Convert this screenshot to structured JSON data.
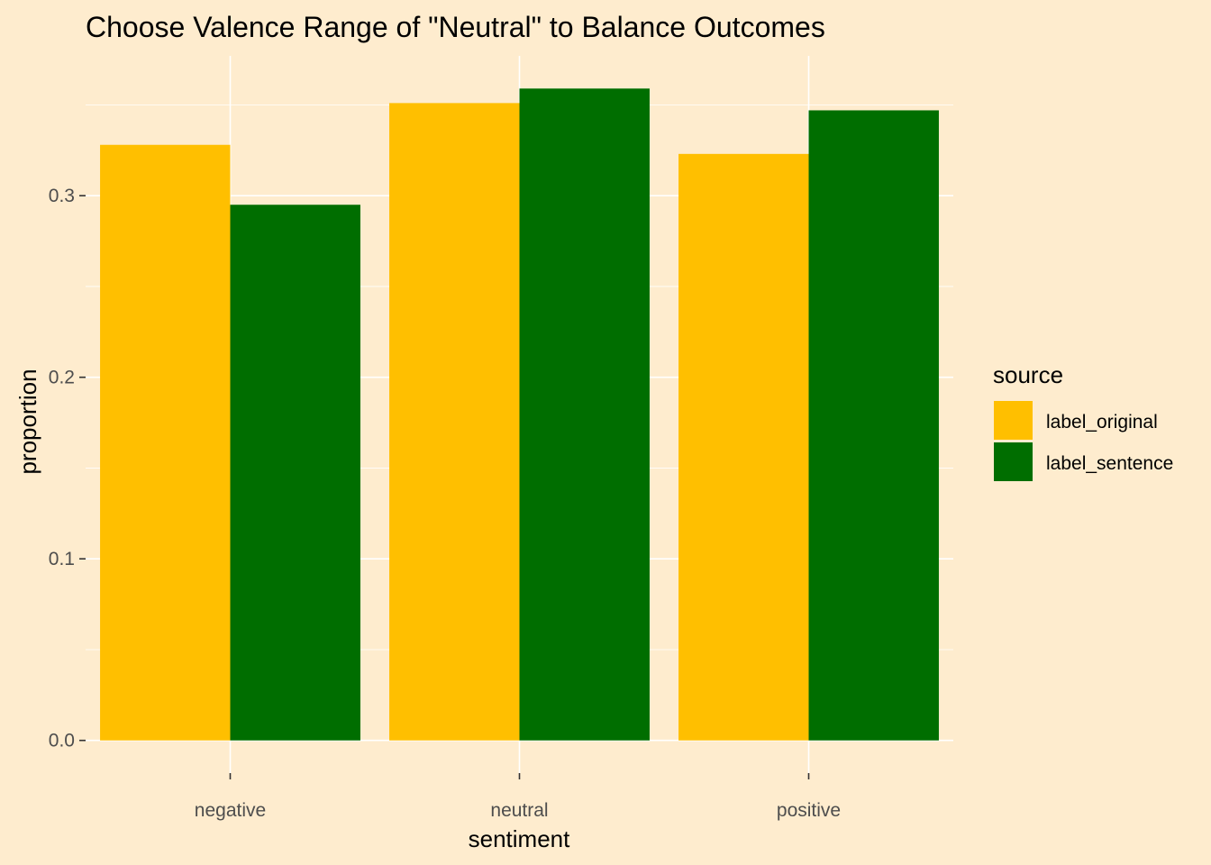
{
  "chart_data": {
    "type": "bar",
    "title": "Choose Valence Range of \"Neutral\" to Balance Outcomes",
    "xlabel": "sentiment",
    "ylabel": "proportion",
    "categories": [
      "negative",
      "neutral",
      "positive"
    ],
    "series": [
      {
        "name": "label_original",
        "color": "#ffbf00",
        "values": [
          0.328,
          0.351,
          0.323
        ]
      },
      {
        "name": "label_sentence",
        "color": "#006e00",
        "values": [
          0.295,
          0.359,
          0.347
        ]
      }
    ],
    "ylim": [
      -0.018,
      0.377
    ],
    "yticks": [
      0.0,
      0.1,
      0.2,
      0.3
    ],
    "ytick_labels": [
      "0.0",
      "0.1",
      "0.2",
      "0.3"
    ],
    "grid": true,
    "legend": {
      "title": "source",
      "position": "right"
    },
    "background_color": "#feecce"
  }
}
